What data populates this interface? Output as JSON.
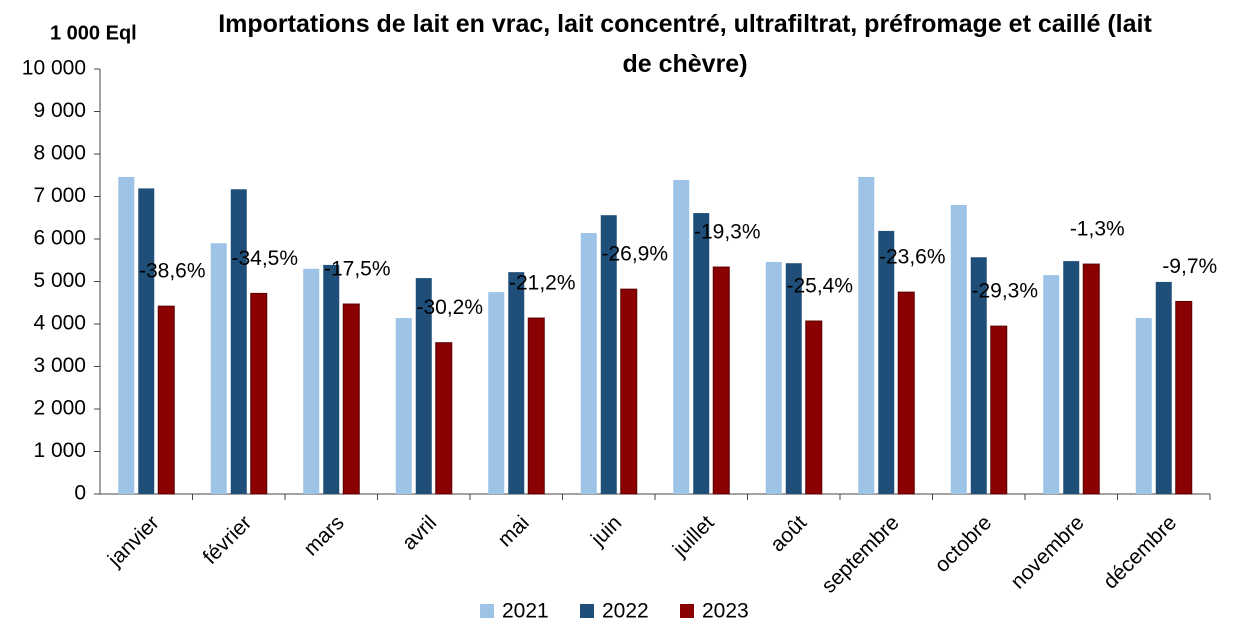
{
  "chart_data": {
    "type": "bar",
    "title": "Importations de lait en vrac, lait concentré, ultrafiltrat, préfromage et caillé (lait de chèvre)",
    "y_axis_label": "1 000 Eql",
    "categories": [
      "janvier",
      "février",
      "mars",
      "avril",
      "mai",
      "juin",
      "juillet",
      "août",
      "septembre",
      "octobre",
      "novembre",
      "décembre"
    ],
    "series": [
      {
        "name": "2021",
        "color": "#9dc3e6",
        "values": [
          7460,
          5900,
          5300,
          4140,
          4750,
          6140,
          7390,
          5460,
          7460,
          6800,
          5150,
          4140
        ]
      },
      {
        "name": "2022",
        "color": "#1f4e79",
        "values": [
          7190,
          7170,
          5390,
          5080,
          5220,
          6560,
          6610,
          5430,
          6190,
          5570,
          5480,
          4990
        ]
      },
      {
        "name": "2023",
        "color": "#8b0000",
        "values": [
          4420,
          4720,
          4470,
          3560,
          4140,
          4820,
          5340,
          4070,
          4750,
          3950,
          5410,
          4530
        ]
      }
    ],
    "annotations": [
      "-38,6%",
      "-34,5%",
      "-17,5%",
      "-30,2%",
      "-21,2%",
      "-26,9%",
      "-19,3%",
      "-25,4%",
      "-23,6%",
      "-29,3%",
      "-1,3%",
      "-9,7%"
    ],
    "ylim": [
      0,
      10000
    ],
    "yticks": [
      0,
      {
        "value": 1000,
        "label": "1 000"
      },
      {
        "value": 2000,
        "label": "2 000"
      },
      {
        "value": 3000,
        "label": "3 000"
      },
      {
        "value": 4000,
        "label": "4 000"
      },
      {
        "value": 5000,
        "label": "5 000"
      },
      {
        "value": 6000,
        "label": "6 000"
      },
      {
        "value": 7000,
        "label": "7 000"
      },
      {
        "value": 8000,
        "label": "8 000"
      },
      {
        "value": 9000,
        "label": "9 000"
      },
      {
        "value": 10000,
        "label": "10 000"
      }
    ],
    "grid": false,
    "legend": "bottom"
  }
}
